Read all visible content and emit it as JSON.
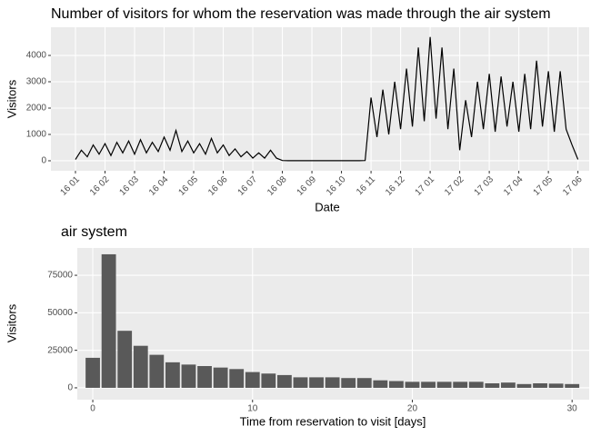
{
  "chart_data": [
    {
      "type": "line",
      "title": "Number of visitors for whom the reservation was made through the air system",
      "x_label": "Date",
      "y_label": "Visitors",
      "xlim": [
        -0.83,
        17.38
      ],
      "ylim": [
        -380,
        5070
      ],
      "xticks": [
        {
          "value": 0,
          "label": "16 01"
        },
        {
          "value": 1,
          "label": "16 02"
        },
        {
          "value": 2,
          "label": "16 03"
        },
        {
          "value": 3,
          "label": "16 04"
        },
        {
          "value": 4,
          "label": "16 05"
        },
        {
          "value": 5,
          "label": "16 06"
        },
        {
          "value": 6,
          "label": "16 07"
        },
        {
          "value": 7,
          "label": "16 08"
        },
        {
          "value": 8,
          "label": "16 09"
        },
        {
          "value": 9,
          "label": "16 10"
        },
        {
          "value": 10,
          "label": "16 11"
        },
        {
          "value": 11,
          "label": "16 12"
        },
        {
          "value": 12,
          "label": "17 01"
        },
        {
          "value": 13,
          "label": "17 02"
        },
        {
          "value": 14,
          "label": "17 03"
        },
        {
          "value": 15,
          "label": "17 04"
        },
        {
          "value": 16,
          "label": "17 05"
        },
        {
          "value": 17,
          "label": "17 06"
        }
      ],
      "yticks": [
        0,
        1000,
        2000,
        3000,
        4000
      ],
      "grid": true,
      "x": [
        0,
        0.2,
        0.4,
        0.6,
        0.8,
        1,
        1.2,
        1.4,
        1.6,
        1.8,
        2,
        2.2,
        2.4,
        2.6,
        2.8,
        3,
        3.2,
        3.4,
        3.6,
        3.8,
        4,
        4.2,
        4.4,
        4.6,
        4.8,
        5,
        5.2,
        5.4,
        5.6,
        5.8,
        6,
        6.2,
        6.4,
        6.6,
        6.8,
        7,
        7.2,
        7.4,
        7.6,
        7.8,
        8,
        8.2,
        8.4,
        8.6,
        8.8,
        9,
        9.2,
        9.4,
        9.6,
        9.8,
        10,
        10.2,
        10.4,
        10.6,
        10.8,
        11,
        11.2,
        11.4,
        11.6,
        11.8,
        12,
        12.2,
        12.4,
        12.6,
        12.8,
        13,
        13.2,
        13.4,
        13.6,
        13.8,
        14,
        14.2,
        14.4,
        14.6,
        14.8,
        15,
        15.2,
        15.4,
        15.6,
        15.8,
        16,
        16.2,
        16.4,
        16.6,
        16.8,
        17
      ],
      "series": [
        {
          "color": "#000000",
          "values": [
            50,
            400,
            150,
            600,
            250,
            650,
            200,
            700,
            300,
            750,
            250,
            800,
            300,
            700,
            350,
            900,
            400,
            1150,
            350,
            750,
            300,
            650,
            250,
            850,
            300,
            600,
            200,
            450,
            150,
            350,
            100,
            300,
            100,
            400,
            100,
            10,
            5,
            5,
            5,
            5,
            5,
            5,
            5,
            5,
            5,
            5,
            5,
            5,
            5,
            10,
            2400,
            900,
            2700,
            1000,
            3000,
            1200,
            3500,
            1300,
            4300,
            1500,
            4700,
            1600,
            4300,
            1200,
            3500,
            400,
            2300,
            900,
            3000,
            1200,
            3300,
            1100,
            3200,
            1300,
            3000,
            1100,
            3300,
            1200,
            3800,
            1300,
            3400,
            1100,
            3400,
            1200,
            600,
            50
          ]
        }
      ]
    },
    {
      "type": "bar",
      "title": "air system",
      "x_label": "Time from reservation to visit [days]",
      "y_label": "Visitors",
      "xlim": [
        -0.97,
        31.07
      ],
      "ylim": [
        -7900,
        93200
      ],
      "xticks": [
        0,
        10,
        20,
        30
      ],
      "yticks": [
        0,
        25000,
        50000,
        75000
      ],
      "grid": true,
      "color": "#595959",
      "x": [
        0,
        1,
        2,
        3,
        4,
        5,
        6,
        7,
        8,
        9,
        10,
        11,
        12,
        13,
        14,
        15,
        16,
        17,
        18,
        19,
        20,
        21,
        22,
        23,
        24,
        25,
        26,
        27,
        28,
        29,
        30
      ],
      "values": [
        20000,
        89000,
        38000,
        28000,
        22000,
        17000,
        15500,
        14500,
        13500,
        12500,
        10500,
        9500,
        8500,
        7000,
        7000,
        7000,
        6500,
        6500,
        5000,
        4500,
        4000,
        4000,
        4000,
        4000,
        4000,
        3000,
        3500,
        2500,
        3000,
        2800,
        2500
      ]
    }
  ]
}
